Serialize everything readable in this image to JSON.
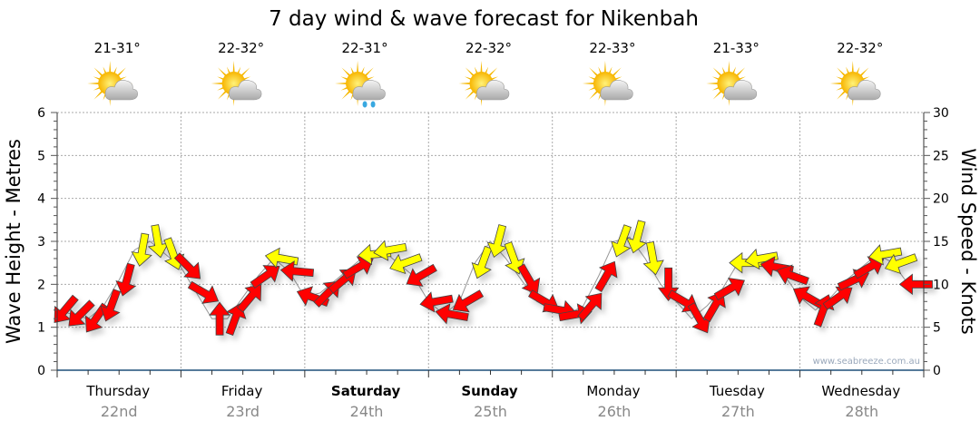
{
  "chart_data": {
    "type": "line",
    "title": "7 day wind & wave forecast for Nikenbah",
    "ylabel_left": "Wave Height - Metres",
    "ylabel_right": "Wind Speed - Knots",
    "ylim_left": [
      0,
      6
    ],
    "ylim_right": [
      0,
      30
    ],
    "yticks_left": [
      "0",
      "1",
      "2",
      "3",
      "4",
      "5",
      "6"
    ],
    "yticks_right": [
      "0",
      "5",
      "10",
      "15",
      "20",
      "25",
      "30"
    ],
    "grid": true,
    "credit": "www.seabreeze.com.au",
    "days": [
      {
        "day": "Thursday",
        "date": "22nd",
        "bold": false,
        "temp": "21-31°",
        "icon": "partly-cloudy-icon"
      },
      {
        "day": "Friday",
        "date": "23rd",
        "bold": false,
        "temp": "22-32°",
        "icon": "partly-cloudy-icon"
      },
      {
        "day": "Saturday",
        "date": "24th",
        "bold": true,
        "temp": "22-31°",
        "icon": "partly-cloudy-rain-icon"
      },
      {
        "day": "Sunday",
        "date": "25th",
        "bold": true,
        "temp": "22-32°",
        "icon": "partly-cloudy-icon"
      },
      {
        "day": "Monday",
        "date": "26th",
        "bold": false,
        "temp": "22-33°",
        "icon": "partly-cloudy-icon"
      },
      {
        "day": "Tuesday",
        "date": "27th",
        "bold": false,
        "temp": "21-33°",
        "icon": "partly-cloudy-icon"
      },
      {
        "day": "Wednesday",
        "date": "28th",
        "bold": false,
        "temp": "22-32°",
        "icon": "partly-cloudy-icon"
      }
    ],
    "colors": {
      "light_wind": "#ff0000",
      "strong_wind": "#ffff00",
      "axis": "#1f4e79",
      "wave_line": "#999999"
    },
    "strong_wind_threshold_knots": 12.5,
    "wind": {
      "fields": [
        "hour",
        "knots",
        "direction_from_deg"
      ],
      "points": [
        [
          0,
          7,
          40
        ],
        [
          3,
          6.5,
          45
        ],
        [
          6,
          6,
          35
        ],
        [
          9,
          7.5,
          20
        ],
        [
          12,
          10.5,
          15
        ],
        [
          15,
          14,
          10
        ],
        [
          18,
          15,
          350
        ],
        [
          21,
          13.5,
          340
        ],
        [
          24,
          12,
          315
        ],
        [
          27,
          9,
          300
        ],
        [
          30,
          6,
          180
        ],
        [
          33,
          6,
          200
        ],
        [
          36,
          8.5,
          220
        ],
        [
          39,
          11,
          235
        ],
        [
          42,
          13,
          100
        ],
        [
          45,
          11.5,
          95
        ],
        [
          48,
          8.5,
          110
        ],
        [
          51,
          9,
          225
        ],
        [
          54,
          10.5,
          230
        ],
        [
          57,
          12,
          240
        ],
        [
          60,
          13.5,
          85
        ],
        [
          63,
          14,
          80
        ],
        [
          66,
          12.5,
          70
        ],
        [
          69,
          11,
          60
        ],
        [
          72,
          8,
          80
        ],
        [
          75,
          6.5,
          100
        ],
        [
          78,
          8,
          60
        ],
        [
          81,
          12.5,
          20
        ],
        [
          84,
          15,
          15
        ],
        [
          87,
          13,
          340
        ],
        [
          90,
          10.5,
          330
        ],
        [
          93,
          8,
          300
        ],
        [
          96,
          7,
          280
        ],
        [
          99,
          6.5,
          260
        ],
        [
          102,
          7.5,
          220
        ],
        [
          105,
          11,
          210
        ],
        [
          108,
          15,
          20
        ],
        [
          111,
          15.5,
          15
        ],
        [
          114,
          13,
          350
        ],
        [
          117,
          10,
          0
        ],
        [
          120,
          8,
          300
        ],
        [
          123,
          6,
          330
        ],
        [
          126,
          7.5,
          210
        ],
        [
          129,
          9.5,
          240
        ],
        [
          132,
          12.5,
          90
        ],
        [
          135,
          13,
          80
        ],
        [
          138,
          12,
          100
        ],
        [
          141,
          11,
          110
        ],
        [
          144,
          8.5,
          120
        ],
        [
          147,
          7,
          200
        ],
        [
          150,
          8.5,
          235
        ],
        [
          153,
          10.5,
          245
        ],
        [
          156,
          12,
          240
        ],
        [
          159,
          13.5,
          80
        ],
        [
          162,
          12.5,
          70
        ],
        [
          165,
          10,
          90
        ]
      ]
    },
    "wave_height_m": [
      1.4,
      1.3,
      1.2,
      1.5,
      2.1,
      2.8,
      3.0,
      2.7,
      2.4,
      1.8,
      1.2,
      1.2,
      1.7,
      2.2,
      2.6,
      2.3,
      1.7,
      1.8,
      2.1,
      2.4,
      2.7,
      2.8,
      2.5,
      2.2,
      1.6,
      1.3,
      1.6,
      2.5,
      3.0,
      2.6,
      2.1,
      1.6,
      1.4,
      1.3,
      1.5,
      2.2,
      3.0,
      3.1,
      2.6,
      2.0,
      1.6,
      1.2,
      1.5,
      1.9,
      2.5,
      2.6,
      2.4,
      2.2,
      1.7,
      1.4,
      1.7,
      2.1,
      2.4,
      2.7,
      2.5,
      2.0
    ]
  }
}
